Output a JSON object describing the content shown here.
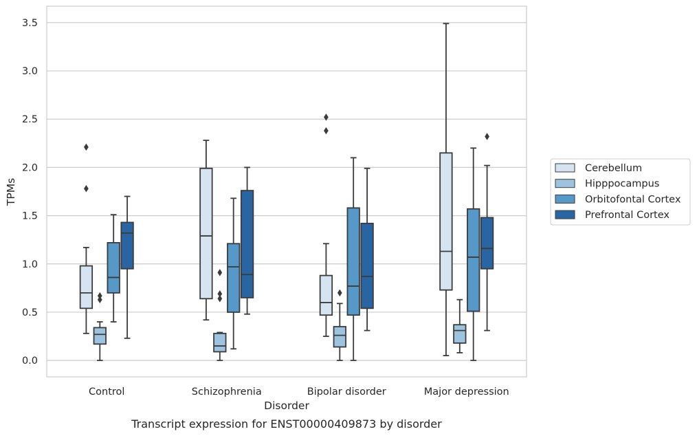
{
  "chart_data": {
    "type": "box",
    "title": "",
    "caption": "Transcript expression for ENST00000409873 by disorder",
    "xlabel": "Disorder",
    "ylabel": "TPMs",
    "ylim": [
      -0.17,
      3.67
    ],
    "yticks": [
      0.0,
      0.5,
      1.0,
      1.5,
      2.0,
      2.5,
      3.0,
      3.5
    ],
    "ytick_labels": [
      "0.0",
      "0.5",
      "1.0",
      "1.5",
      "2.0",
      "2.5",
      "3.0",
      "3.5"
    ],
    "grid": "horizontal",
    "legend_position": "center-right, outside plot",
    "categories": [
      "Control",
      "Schizophrenia",
      "Bipolar disorder",
      "Major depression"
    ],
    "series": [
      {
        "name": "Cerebellum",
        "color": "#d6e4f2",
        "boxes": [
          {
            "whislo": 0.28,
            "q1": 0.54,
            "med": 0.7,
            "q3": 0.98,
            "whishi": 1.17,
            "fliers": [
              1.78,
              2.21
            ]
          },
          {
            "whislo": 0.42,
            "q1": 0.64,
            "med": 1.29,
            "q3": 1.99,
            "whishi": 2.28,
            "fliers": []
          },
          {
            "whislo": 0.25,
            "q1": 0.47,
            "med": 0.6,
            "q3": 0.88,
            "whishi": 1.21,
            "fliers": [
              2.38,
              2.52
            ]
          },
          {
            "whislo": 0.05,
            "q1": 0.73,
            "med": 1.13,
            "q3": 2.15,
            "whishi": 3.49,
            "fliers": []
          }
        ]
      },
      {
        "name": "Hipppocampus",
        "color": "#9dc3de",
        "boxes": [
          {
            "whislo": 0.0,
            "q1": 0.17,
            "med": 0.27,
            "q3": 0.34,
            "whishi": 0.4,
            "fliers": [
              0.63,
              0.67
            ]
          },
          {
            "whislo": 0.0,
            "q1": 0.09,
            "med": 0.15,
            "q3": 0.28,
            "whishi": 0.29,
            "fliers": [
              0.64,
              0.69,
              0.91
            ]
          },
          {
            "whislo": 0.0,
            "q1": 0.14,
            "med": 0.26,
            "q3": 0.35,
            "whishi": 0.59,
            "fliers": [
              0.7
            ]
          },
          {
            "whislo": 0.08,
            "q1": 0.18,
            "med": 0.31,
            "q3": 0.37,
            "whishi": 0.63,
            "fliers": []
          }
        ]
      },
      {
        "name": "Orbitofontal Cortex",
        "color": "#5699c9",
        "boxes": [
          {
            "whislo": 0.4,
            "q1": 0.7,
            "med": 0.86,
            "q3": 1.22,
            "whishi": 1.51,
            "fliers": []
          },
          {
            "whislo": 0.12,
            "q1": 0.5,
            "med": 0.97,
            "q3": 1.21,
            "whishi": 1.68,
            "fliers": []
          },
          {
            "whislo": 0.0,
            "q1": 0.47,
            "med": 0.77,
            "q3": 1.58,
            "whishi": 2.1,
            "fliers": []
          },
          {
            "whislo": 0.0,
            "q1": 0.51,
            "med": 1.07,
            "q3": 1.57,
            "whishi": 2.2,
            "fliers": []
          }
        ]
      },
      {
        "name": "Prefrontal Cortex",
        "color": "#2a65a3",
        "boxes": [
          {
            "whislo": 0.23,
            "q1": 0.95,
            "med": 1.32,
            "q3": 1.43,
            "whishi": 1.7,
            "fliers": []
          },
          {
            "whislo": 0.48,
            "q1": 0.65,
            "med": 0.89,
            "q3": 1.76,
            "whishi": 2.0,
            "fliers": []
          },
          {
            "whislo": 0.31,
            "q1": 0.54,
            "med": 0.87,
            "q3": 1.42,
            "whishi": 1.99,
            "fliers": []
          },
          {
            "whislo": 0.31,
            "q1": 0.95,
            "med": 1.16,
            "q3": 1.48,
            "whishi": 2.02,
            "fliers": [
              2.32
            ]
          }
        ]
      }
    ],
    "styles": {
      "box_edge": "#3b3b3b",
      "grid": "#cccccc",
      "frame": "#cccccc"
    }
  }
}
